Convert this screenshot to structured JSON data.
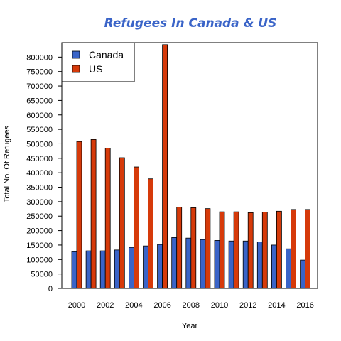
{
  "chart_data": {
    "type": "bar",
    "title": "Refugees In Canada & US",
    "xlabel": "Year",
    "ylabel": "Total No. Of Refugees",
    "categories": [
      "2000",
      "2001",
      "2002",
      "2003",
      "2004",
      "2005",
      "2006",
      "2007",
      "2008",
      "2009",
      "2010",
      "2011",
      "2012",
      "2013",
      "2014",
      "2015",
      "2016"
    ],
    "x_tick_labels": [
      "2000",
      "2002",
      "2004",
      "2006",
      "2008",
      "2010",
      "2012",
      "2014",
      "2016"
    ],
    "y_ticks": [
      0,
      50000,
      100000,
      150000,
      200000,
      250000,
      300000,
      350000,
      400000,
      450000,
      500000,
      550000,
      600000,
      650000,
      700000,
      750000,
      800000
    ],
    "ylim": [
      0,
      850000
    ],
    "legend_position": "top-left",
    "series": [
      {
        "name": "Canada",
        "color": "#3a64c8",
        "values": [
          127000,
          130000,
          130000,
          133000,
          142000,
          147000,
          152000,
          176000,
          174000,
          169000,
          166000,
          164000,
          164000,
          161000,
          150000,
          137000,
          98000
        ]
      },
      {
        "name": "US",
        "color": "#d63a0a",
        "values": [
          508000,
          515000,
          485000,
          452000,
          420000,
          379000,
          843000,
          281000,
          279000,
          276000,
          265000,
          265000,
          262000,
          264000,
          267000,
          273000,
          273000
        ]
      }
    ]
  }
}
